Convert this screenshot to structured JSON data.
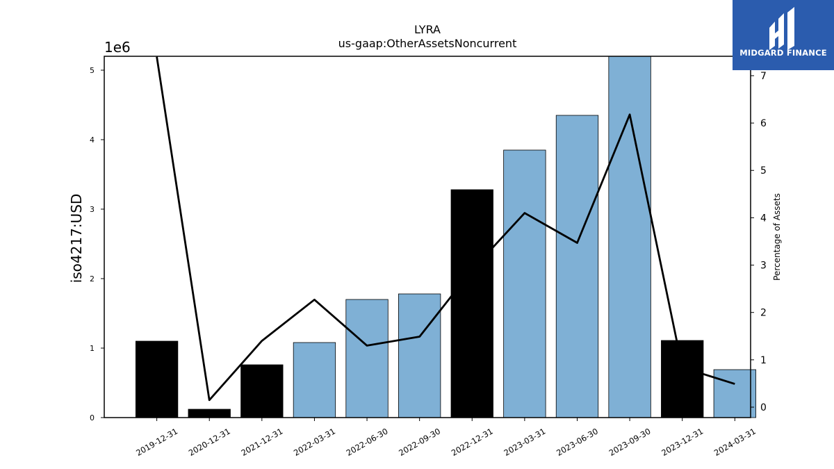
{
  "chart_data": {
    "type": "bar",
    "title": "LYRA",
    "subtitle": "us-gaap:OtherAssetsNoncurrent",
    "ylabel": "iso4217:USD",
    "y2label": "Percentage of Assets",
    "y_offset_label": "1e6",
    "ylim": [
      0,
      5.2
    ],
    "y2lim": [
      -0.22,
      7.41
    ],
    "yticks": [
      0,
      1,
      2,
      3,
      4,
      5
    ],
    "y2ticks": [
      0,
      1,
      2,
      3,
      4,
      5,
      6,
      7
    ],
    "categories": [
      "2019-12-31",
      "2020-12-31",
      "2021-12-31",
      "2022-03-31",
      "2022-06-30",
      "2022-09-30",
      "2022-12-31",
      "2023-03-31",
      "2023-06-30",
      "2023-09-30",
      "2023-12-31",
      "2024-03-31"
    ],
    "series": [
      {
        "type": "bar",
        "values": [
          1.1,
          0.12,
          0.76,
          1.08,
          1.7,
          1.78,
          3.28,
          3.85,
          4.35,
          5.2,
          1.11,
          0.69
        ],
        "bar_colors": [
          "#000000",
          "#000000",
          "#000000",
          "#7fb0d5",
          "#7fb0d5",
          "#7fb0d5",
          "#000000",
          "#7fb0d5",
          "#7fb0d5",
          "#7fb0d5",
          "#000000",
          "#7fb0d5"
        ]
      },
      {
        "type": "line",
        "axis": "right",
        "color": "#000000",
        "values": [
          7.4,
          0.15,
          1.4,
          2.27,
          1.3,
          1.49,
          2.9,
          4.1,
          3.47,
          6.18,
          0.84,
          0.49
        ]
      }
    ],
    "grid": false
  },
  "logo": {
    "text": "MIDGARD FINANCE",
    "background": "#2b5cae"
  }
}
